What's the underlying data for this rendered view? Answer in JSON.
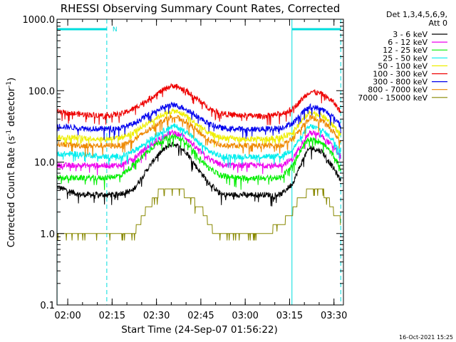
{
  "chart_data": {
    "type": "line",
    "title": "RHESSI Observing Summary Count Rates, Corrected",
    "xlabel": "Start Time (24-Sep-07 01:56:22)",
    "ylabel_parts": [
      "Corrected Count Rate (s",
      "-1",
      " detector",
      "-1",
      ")"
    ],
    "yscale": "log",
    "ylim": [
      0.1,
      1000
    ],
    "xlim_minutes": [
      116.37,
      213.2
    ],
    "y_ticks": [
      {
        "v": 1000,
        "label": "1000.0"
      },
      {
        "v": 100,
        "label": "100.0"
      },
      {
        "v": 10,
        "label": "10.0"
      },
      {
        "v": 1,
        "label": "1.0"
      },
      {
        "v": 0.1,
        "label": "0.1"
      }
    ],
    "x_ticks": [
      {
        "v": 120,
        "label": "02:00"
      },
      {
        "v": 135,
        "label": "02:15"
      },
      {
        "v": 150,
        "label": "02:30"
      },
      {
        "v": 165,
        "label": "02:45"
      },
      {
        "v": 180,
        "label": "03:00"
      },
      {
        "v": 195,
        "label": "03:15"
      },
      {
        "v": 210,
        "label": "03:30"
      }
    ],
    "legend_header": [
      "Det 1,3,4,5,6,9,",
      "Att 0"
    ],
    "flag_label": "N",
    "flag_bars": [
      [
        116.4,
        133.2
      ],
      [
        195.8,
        212.3
      ]
    ],
    "cyan_vlines": [
      116.4,
      133.2,
      195.8,
      212.3
    ],
    "cyan_vline_styles": [
      "solid",
      "dashed",
      "solid",
      "dashed"
    ],
    "peaks_minutes": [
      155.5,
      201.5
    ],
    "series": [
      {
        "name": "3 - 6 keV",
        "color": "#000000",
        "x": [
          116.4,
          124,
          130,
          136,
          142,
          146,
          150,
          154,
          156,
          160,
          164,
          168,
          172,
          176,
          180,
          186,
          192,
          196,
          200,
          202,
          206,
          210,
          212.3
        ],
        "y": [
          4.5,
          3.5,
          3.5,
          3.5,
          4,
          7,
          12,
          17,
          18,
          14,
          8,
          5,
          3.5,
          3.5,
          3.5,
          3.5,
          3.5,
          5,
          12,
          16,
          14,
          8,
          5.5
        ]
      },
      {
        "name": "6 - 12 keV",
        "color": "#ee00ee",
        "x": [
          116.4,
          124,
          132,
          138,
          142,
          146,
          150,
          154,
          156,
          160,
          164,
          168,
          172,
          178,
          186,
          192,
          196,
          200,
          202,
          206,
          210,
          212.3
        ],
        "y": [
          9,
          9,
          9,
          9,
          11,
          15,
          20,
          25,
          26,
          22,
          15,
          11,
          9,
          9,
          9,
          9,
          11,
          21,
          26,
          23,
          16,
          12
        ]
      },
      {
        "name": "12 - 25 keV",
        "color": "#00ee00",
        "x": [
          116.4,
          124,
          132,
          138,
          142,
          146,
          150,
          154,
          156,
          160,
          164,
          168,
          172,
          178,
          186,
          192,
          196,
          200,
          202,
          206,
          210,
          212.3
        ],
        "y": [
          6,
          6,
          6,
          6.5,
          9,
          13,
          18,
          22,
          23,
          19,
          12,
          8,
          6.5,
          6,
          6,
          6,
          9,
          18,
          21,
          19,
          12,
          8
        ]
      },
      {
        "name": "25 - 50 keV",
        "color": "#00eeee",
        "x": [
          116.4,
          124,
          132,
          138,
          142,
          146,
          150,
          154,
          156,
          160,
          164,
          168,
          172,
          178,
          186,
          192,
          196,
          200,
          202,
          206,
          210,
          212.3
        ],
        "y": [
          13,
          13,
          12,
          12,
          14,
          18,
          24,
          30,
          32,
          27,
          19,
          14,
          12,
          12,
          12,
          12,
          15,
          26,
          32,
          28,
          20,
          14
        ]
      },
      {
        "name": "50 - 100 keV",
        "color": "#eeee00",
        "x": [
          116.4,
          124,
          132,
          138,
          142,
          146,
          150,
          154,
          156,
          160,
          164,
          168,
          172,
          178,
          186,
          192,
          196,
          200,
          202,
          206,
          210,
          212.3
        ],
        "y": [
          22,
          22,
          21,
          22,
          26,
          33,
          42,
          50,
          52,
          45,
          33,
          25,
          22,
          21,
          21,
          22,
          26,
          42,
          50,
          45,
          32,
          24
        ]
      },
      {
        "name": "100 - 300 keV",
        "color": "#ee0000",
        "x": [
          116.4,
          124,
          132,
          138,
          142,
          146,
          150,
          154,
          156,
          160,
          164,
          168,
          172,
          178,
          186,
          192,
          196,
          200,
          202,
          206,
          210,
          212.3
        ],
        "y": [
          50,
          47,
          45,
          47,
          55,
          70,
          90,
          112,
          118,
          100,
          75,
          56,
          48,
          45,
          44,
          47,
          55,
          82,
          98,
          90,
          68,
          50
        ]
      },
      {
        "name": "300 - 800 keV",
        "color": "#0000ee",
        "x": [
          116.4,
          124,
          132,
          138,
          142,
          146,
          150,
          154,
          156,
          160,
          164,
          168,
          172,
          178,
          186,
          192,
          196,
          200,
          202,
          206,
          210,
          212.3
        ],
        "y": [
          32,
          30,
          29,
          30,
          34,
          43,
          53,
          62,
          63,
          56,
          43,
          34,
          30,
          29,
          29,
          30,
          35,
          52,
          60,
          55,
          42,
          33
        ]
      },
      {
        "name": "800 - 7000 keV",
        "color": "#ee8800",
        "x": [
          116.4,
          124,
          132,
          138,
          142,
          146,
          150,
          154,
          156,
          160,
          164,
          168,
          172,
          178,
          186,
          192,
          196,
          200,
          202,
          206,
          210,
          212.3
        ],
        "y": [
          18,
          17,
          17,
          17,
          20,
          26,
          34,
          42,
          44,
          37,
          27,
          20,
          17,
          17,
          17,
          17,
          21,
          34,
          42,
          38,
          26,
          19
        ]
      },
      {
        "name": "7000 - 15000 keV",
        "color": "#888800",
        "x": [
          116.4,
          132,
          134,
          136,
          138,
          140,
          142,
          144,
          146,
          148,
          150,
          153,
          156,
          160,
          162,
          164,
          166,
          168,
          170,
          172,
          176,
          182,
          186,
          192,
          196,
          198,
          200,
          202,
          206,
          208,
          210,
          212.3
        ],
        "y": [
          1,
          1,
          1,
          1,
          1,
          1,
          1,
          1.3,
          2,
          2.5,
          3.5,
          4.5,
          4.5,
          3.5,
          3,
          2.5,
          2,
          1.3,
          1,
          1,
          1,
          1,
          1,
          1.3,
          2,
          3,
          3.5,
          4,
          4,
          3,
          2,
          1.5
        ]
      }
    ]
  },
  "footer_date": "16-Oct-2021 15:25"
}
